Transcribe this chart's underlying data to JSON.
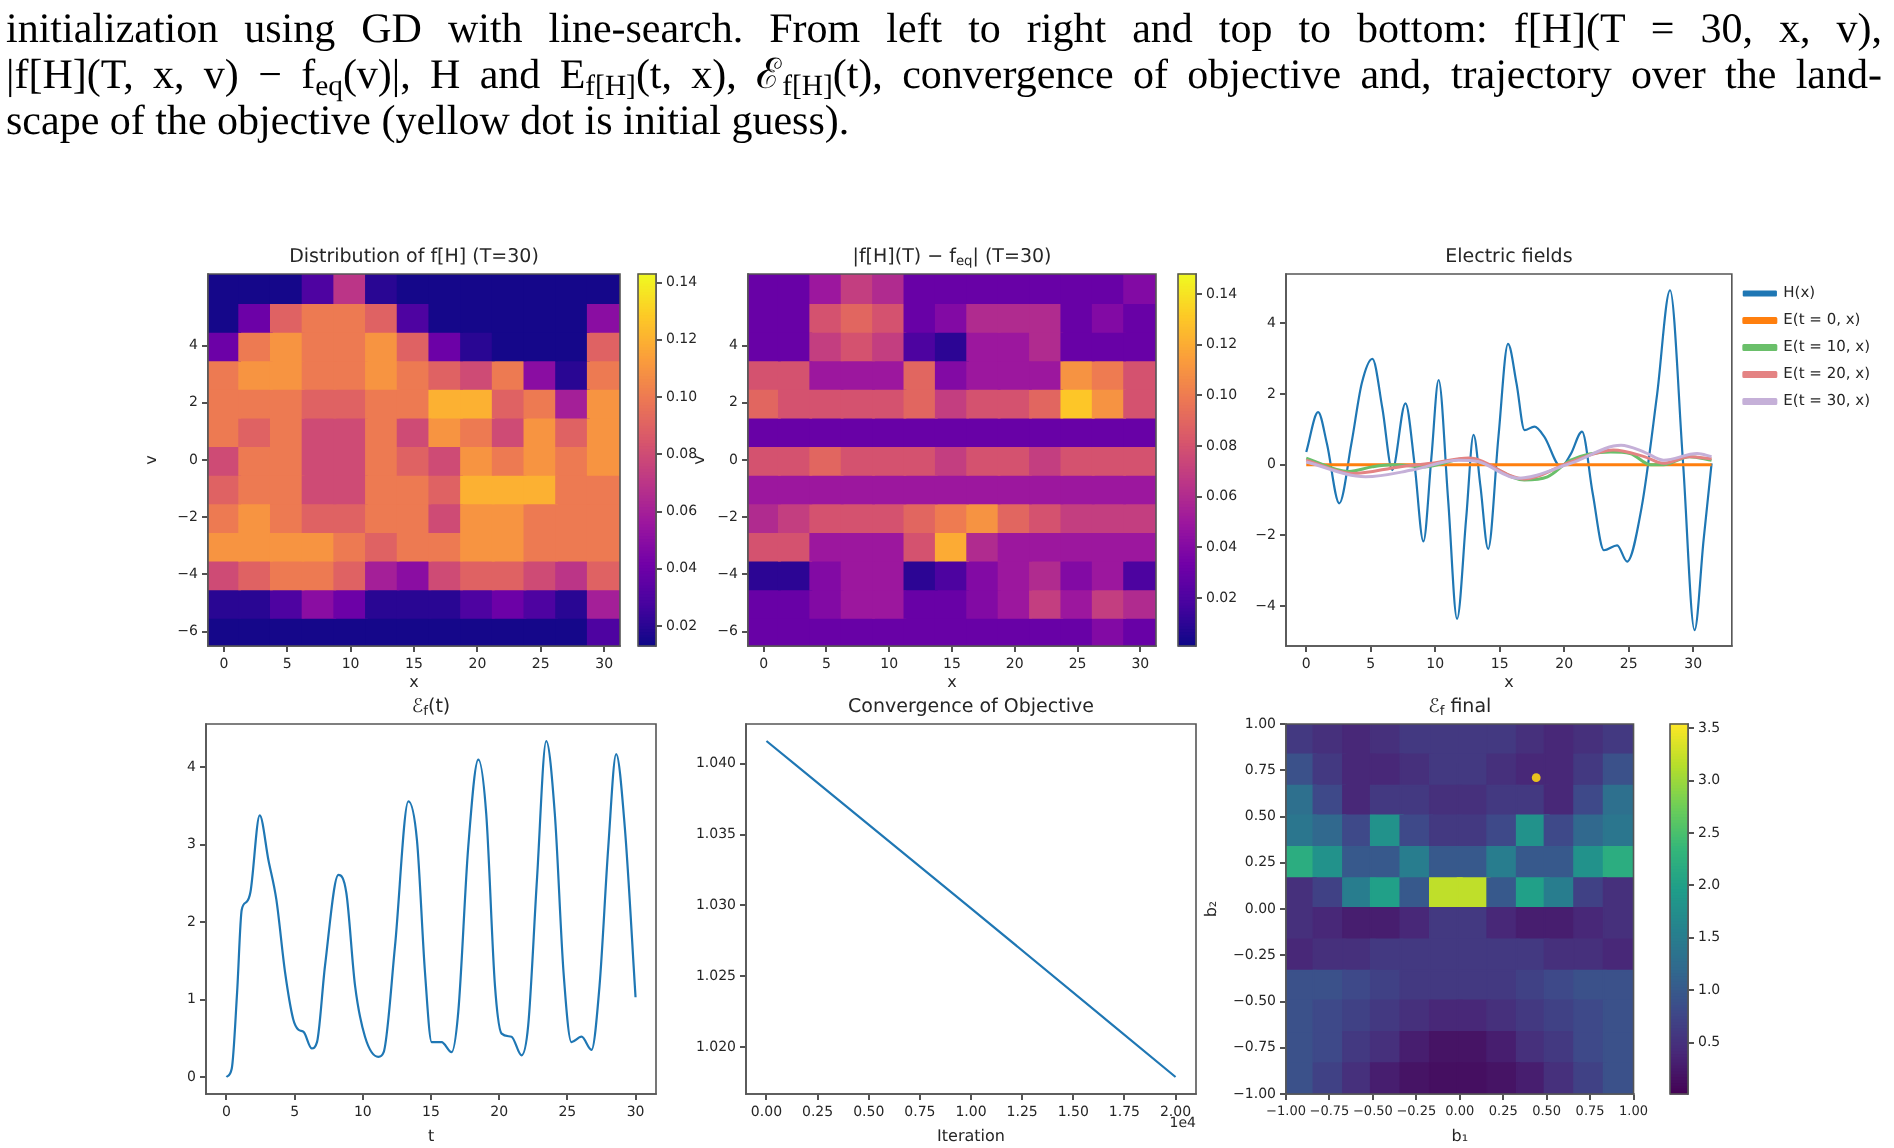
{
  "chart_data": [
    {
      "type": "other",
      "annotations": [
        "initialization using GD with line-search. From left to right and top to bottom: f[H](T = 30, x, v),",
        "|f[H](T, x, v) − f$_{eq}$(v)|, H and E$_{f[H]}$(t, x), ℰ$_{f[H]}$(t), convergence of objective and, trajectory over the land-",
        "scape of the objective (yellow dot is initial guess)."
      ]
    },
    {
      "type": "heatmap",
      "title": "Distribution of f[H] (T=30)",
      "xlabel": "x",
      "ylabel": "v",
      "categories": [
        "0",
        null,
        "5",
        null,
        "10",
        null,
        "15",
        null,
        "20",
        null,
        "25",
        null,
        "30"
      ],
      "y_categories": [
        null,
        null,
        "4",
        null,
        "2",
        null,
        "0",
        null,
        "−2",
        null,
        "−4",
        null,
        "−6"
      ],
      "clim": [
        0.013,
        0.143
      ],
      "cticks": [
        0.02,
        0.04,
        0.06,
        0.08,
        {
          "value": 0.1,
          "label": "0.10"
        },
        0.12,
        0.14
      ],
      "colors": [
        "#0d0887",
        "#46039f",
        "#7201a8",
        "#9c179e",
        "#bd3786",
        "#d8576b",
        "#ed7953",
        "#fb9f3a",
        "#fdca26",
        "#f0f921"
      ],
      "cells": [
        [
          0.015,
          0.015,
          0.015,
          0.03,
          0.07,
          0.02,
          0.015,
          0.015,
          0.015,
          0.015,
          0.015,
          0.015,
          0.015
        ],
        [
          0.015,
          0.04,
          0.09,
          0.1,
          0.1,
          0.09,
          0.03,
          0.015,
          0.015,
          0.015,
          0.015,
          0.015,
          0.05
        ],
        [
          0.04,
          0.1,
          0.11,
          0.1,
          0.1,
          0.11,
          0.09,
          0.04,
          0.02,
          0.015,
          0.015,
          0.015,
          0.09
        ],
        [
          0.1,
          0.11,
          0.11,
          0.1,
          0.1,
          0.11,
          0.1,
          0.09,
          0.08,
          0.1,
          0.05,
          0.02,
          0.1
        ],
        [
          0.1,
          0.1,
          0.1,
          0.09,
          0.09,
          0.1,
          0.1,
          0.12,
          0.12,
          0.09,
          0.1,
          0.06,
          0.11
        ],
        [
          0.1,
          0.09,
          0.1,
          0.08,
          0.08,
          0.1,
          0.08,
          0.11,
          0.1,
          0.08,
          0.11,
          0.09,
          0.11
        ],
        [
          0.08,
          0.1,
          0.1,
          0.08,
          0.08,
          0.1,
          0.09,
          0.08,
          0.11,
          0.1,
          0.11,
          0.1,
          0.11
        ],
        [
          0.09,
          0.1,
          0.1,
          0.08,
          0.08,
          0.1,
          0.1,
          0.09,
          0.12,
          0.12,
          0.12,
          0.1,
          0.1
        ],
        [
          0.1,
          0.11,
          0.1,
          0.09,
          0.09,
          0.1,
          0.1,
          0.08,
          0.11,
          0.11,
          0.1,
          0.1,
          0.1
        ],
        [
          0.11,
          0.11,
          0.11,
          0.11,
          0.1,
          0.09,
          0.1,
          0.1,
          0.11,
          0.11,
          0.1,
          0.1,
          0.1
        ],
        [
          0.08,
          0.09,
          0.1,
          0.1,
          0.09,
          0.06,
          0.05,
          0.08,
          0.09,
          0.09,
          0.08,
          0.07,
          0.09
        ],
        [
          0.02,
          0.02,
          0.03,
          0.05,
          0.04,
          0.02,
          0.02,
          0.02,
          0.03,
          0.04,
          0.03,
          0.02,
          0.06
        ],
        [
          0.015,
          0.015,
          0.015,
          0.015,
          0.015,
          0.015,
          0.015,
          0.015,
          0.015,
          0.015,
          0.015,
          0.015,
          0.03
        ]
      ]
    },
    {
      "type": "heatmap",
      "title": "|f[H](T) − f$_{eq}$| (T=30)",
      "xlabel": "x",
      "ylabel": "v",
      "categories": [
        "0",
        null,
        "5",
        null,
        "10",
        null,
        "15",
        null,
        "20",
        null,
        "25",
        null,
        "30"
      ],
      "y_categories": [
        null,
        null,
        "4",
        null,
        "2",
        null,
        "0",
        null,
        "−2",
        null,
        "−4",
        null,
        "−6"
      ],
      "clim": [
        0.001,
        0.148
      ],
      "cticks": [
        0.02,
        0.04,
        0.06,
        0.08,
        {
          "value": 0.1,
          "label": "0.10"
        },
        0.12,
        0.14
      ],
      "colors": [
        "#0d0887",
        "#46039f",
        "#7201a8",
        "#9c179e",
        "#bd3786",
        "#d8576b",
        "#ed7953",
        "#fb9f3a",
        "#fdca26",
        "#f0f921"
      ],
      "cells": [
        [
          0.03,
          0.03,
          0.05,
          0.07,
          0.06,
          0.03,
          0.03,
          0.03,
          0.03,
          0.03,
          0.03,
          0.03,
          0.04
        ],
        [
          0.03,
          0.03,
          0.08,
          0.09,
          0.08,
          0.03,
          0.04,
          0.06,
          0.06,
          0.06,
          0.03,
          0.04,
          0.03
        ],
        [
          0.03,
          0.03,
          0.07,
          0.08,
          0.07,
          0.02,
          0.01,
          0.05,
          0.05,
          0.06,
          0.03,
          0.03,
          0.03
        ],
        [
          0.08,
          0.08,
          0.05,
          0.05,
          0.05,
          0.09,
          0.04,
          0.05,
          0.05,
          0.05,
          0.11,
          0.1,
          0.08
        ],
        [
          0.09,
          0.08,
          0.08,
          0.08,
          0.08,
          0.09,
          0.07,
          0.08,
          0.08,
          0.09,
          0.13,
          0.11,
          0.08
        ],
        [
          0.03,
          0.03,
          0.03,
          0.03,
          0.03,
          0.03,
          0.03,
          0.03,
          0.03,
          0.03,
          0.03,
          0.03,
          0.03
        ],
        [
          0.08,
          0.08,
          0.09,
          0.08,
          0.08,
          0.08,
          0.07,
          0.08,
          0.08,
          0.07,
          0.08,
          0.08,
          0.08
        ],
        [
          0.05,
          0.05,
          0.05,
          0.05,
          0.05,
          0.05,
          0.05,
          0.05,
          0.05,
          0.05,
          0.05,
          0.05,
          0.05
        ],
        [
          0.06,
          0.07,
          0.08,
          0.08,
          0.08,
          0.09,
          0.1,
          0.11,
          0.09,
          0.08,
          0.07,
          0.07,
          0.07
        ],
        [
          0.08,
          0.08,
          0.05,
          0.05,
          0.05,
          0.08,
          0.12,
          0.06,
          0.05,
          0.05,
          0.05,
          0.05,
          0.05
        ],
        [
          0.01,
          0.01,
          0.04,
          0.05,
          0.05,
          0.01,
          0.02,
          0.04,
          0.05,
          0.06,
          0.04,
          0.05,
          0.02
        ],
        [
          0.03,
          0.03,
          0.04,
          0.05,
          0.05,
          0.03,
          0.03,
          0.04,
          0.05,
          0.07,
          0.05,
          0.07,
          0.06
        ],
        [
          0.03,
          0.03,
          0.03,
          0.03,
          0.03,
          0.03,
          0.03,
          0.03,
          0.03,
          0.03,
          0.03,
          0.04,
          0.03
        ]
      ]
    },
    {
      "type": "line",
      "title": "Electric fields",
      "xlabel": "x",
      "xlim": [
        -1.57,
        32.99
      ],
      "ylim": [
        -5.13,
        5.4
      ],
      "xticks": [
        0,
        5,
        10,
        15,
        20,
        25,
        30
      ],
      "yticks": [
        {
          "value": -4,
          "label": "−4"
        },
        {
          "value": -2,
          "label": "−2"
        },
        0,
        2,
        4
      ],
      "legend": "top right",
      "series": [
        {
          "name": "H(x)",
          "color": "#1f77b4",
          "x": [
            0,
            0.92,
            1.6,
            2.56,
            3.5,
            4.3,
            5.13,
            5.9,
            6.67,
            7.69,
            8.4,
            9.08,
            9.7,
            10.26,
            11.0,
            11.69,
            12.4,
            12.97,
            13.5,
            14.1,
            14.9,
            15.64,
            16.3,
            16.92,
            17.69,
            18.46,
            19.74,
            20.5,
            21.38,
            22.2,
            23.08,
            24.1,
            24.87,
            26.0,
            27.2,
            28.2,
            29.2,
            30.1,
            30.8,
            31.42
          ],
          "values": [
            0.36,
            1.49,
            0.6,
            -1.09,
            0.6,
            2.3,
            3.0,
            1.6,
            -0.15,
            1.74,
            0.0,
            -2.17,
            0.2,
            2.4,
            -1.0,
            -4.36,
            -1.5,
            0.85,
            -0.6,
            -2.38,
            0.8,
            3.42,
            2.3,
            0.98,
            1.08,
            0.79,
            -0.06,
            0.3,
            0.94,
            -0.8,
            -2.42,
            -2.28,
            -2.74,
            -1.2,
            2.0,
            4.94,
            0.1,
            -4.68,
            -2.13,
            0.04
          ]
        },
        {
          "name": "E(t = 0, x)",
          "color": "#ff7f0e",
          "x": [
            0,
            31.42
          ],
          "values": [
            0,
            0
          ]
        },
        {
          "name": "E(t = 10, x)",
          "color": "#6abf6a",
          "x": [
            0,
            3.3,
            5.1,
            6.7,
            9.2,
            12.3,
            13.8,
            16.9,
            18.7,
            20.5,
            23.6,
            25.1,
            26.7,
            27.7,
            29.7,
            31.42
          ],
          "values": [
            0.19,
            -0.19,
            -0.06,
            0,
            -0.06,
            0.17,
            0.04,
            -0.43,
            -0.34,
            0.13,
            0.36,
            0.32,
            0,
            0,
            0.23,
            0.13
          ]
        },
        {
          "name": "E(t = 20, x)",
          "color": "#e48383",
          "x": [
            0,
            3.6,
            7.2,
            9.7,
            12.6,
            16.9,
            20.5,
            23.8,
            26.2,
            27.7,
            29.7,
            31.42
          ],
          "values": [
            0.13,
            -0.25,
            -0.06,
            0.04,
            0.19,
            -0.4,
            0.08,
            0.42,
            0.23,
            0.04,
            0.23,
            0.17
          ]
        },
        {
          "name": "E(t = 30, x)",
          "color": "#c5b0d8",
          "x": [
            0,
            4.6,
            8.2,
            11.8,
            13.3,
            16.4,
            20.5,
            24.4,
            26.2,
            27.7,
            30.3,
            31.42
          ],
          "values": [
            0.08,
            -0.34,
            -0.15,
            0.13,
            0.09,
            -0.38,
            0.04,
            0.55,
            0.36,
            0.13,
            0.32,
            0.23
          ]
        }
      ]
    },
    {
      "type": "line",
      "title": "ℰ$_{f}$(t)",
      "xlabel": "t",
      "color": "#1f77b4",
      "xlim": [
        -1.5,
        31.5
      ],
      "ylim": [
        -0.22,
        4.56
      ],
      "xticks": [
        0,
        5,
        10,
        15,
        20,
        25,
        30
      ],
      "yticks": [
        0,
        1,
        2,
        3,
        4
      ],
      "x": [
        0,
        0.39,
        0.78,
        1.12,
        1.47,
        1.76,
        2.44,
        3.08,
        3.66,
        4.3,
        4.89,
        5.28,
        5.67,
        6.25,
        6.64,
        7.23,
        8.21,
        8.79,
        9.43,
        10.16,
        11.14,
        11.53,
        12.36,
        13.34,
        13.97,
        14.56,
        15.05,
        15.78,
        16.51,
        17.0,
        17.73,
        18.47,
        19.05,
        19.69,
        20.18,
        20.9,
        21.64,
        22.13,
        22.77,
        23.45,
        24.08,
        24.72,
        25.3,
        26.04,
        26.77,
        27.36,
        28.0,
        28.58,
        29.21,
        30.0
      ],
      "values": [
        0,
        0.11,
        1.09,
        2.16,
        2.26,
        2.39,
        3.38,
        2.8,
        2.29,
        1.35,
        0.75,
        0.61,
        0.58,
        0.37,
        0.45,
        1.44,
        2.61,
        2.38,
        1.18,
        0.52,
        0.26,
        0.32,
        1.69,
        3.56,
        3.06,
        1.35,
        0.45,
        0.45,
        0.32,
        0.84,
        2.97,
        4.1,
        3.4,
        1.18,
        0.56,
        0.52,
        0.28,
        0.67,
        2.55,
        4.34,
        3.4,
        1.35,
        0.45,
        0.52,
        0.35,
        1.18,
        2.97,
        4.17,
        3.23,
        1.03
      ]
    },
    {
      "type": "line",
      "title": "Convergence of Objective",
      "xlabel": "Iteration",
      "color": "#1f77b4",
      "x": [
        0,
        1,
        2
      ],
      "values": [
        1.0416,
        1.0298,
        1.0179
      ],
      "xlim": [
        -0.1,
        2.1
      ],
      "ylim": [
        1.0167,
        1.0428
      ],
      "xticks": [
        {
          "value": 0,
          "label": "0.00"
        },
        {
          "value": 0.25,
          "label": "0.25"
        },
        {
          "value": 0.5,
          "label": "0.50"
        },
        {
          "value": 0.75,
          "label": "0.75"
        },
        {
          "value": 1,
          "label": "1.00"
        },
        {
          "value": 1.25,
          "label": "1.25"
        },
        {
          "value": 1.5,
          "label": "1.50"
        },
        {
          "value": 1.75,
          "label": "1.75"
        },
        {
          "value": 2,
          "label": "2.00"
        }
      ],
      "yticks": [
        {
          "value": 1.02,
          "label": "1.020"
        },
        {
          "value": 1.025,
          "label": "1.025"
        },
        {
          "value": 1.03,
          "label": "1.030"
        },
        {
          "value": 1.035,
          "label": "1.035"
        },
        {
          "value": 1.04,
          "label": "1.040"
        }
      ],
      "annotations": [
        "1e4"
      ]
    },
    {
      "type": "scatter",
      "title": "ℰ$_{f}$ final",
      "xlabel": "b₁",
      "ylabel": "b₂",
      "xlim": [
        -1,
        1
      ],
      "ylim": [
        -1,
        1
      ],
      "xticks": [
        {
          "value": -1,
          "label": "−1.00"
        },
        {
          "value": -0.75,
          "label": "−0.75"
        },
        {
          "value": -0.5,
          "label": "−0.50"
        },
        {
          "value": -0.25,
          "label": "−0.25"
        },
        {
          "value": 0,
          "label": "0.00"
        },
        {
          "value": 0.25,
          "label": "0.25"
        },
        {
          "value": 0.5,
          "label": "0.50"
        },
        {
          "value": 0.75,
          "label": "0.75"
        },
        {
          "value": 1,
          "label": "1.00"
        }
      ],
      "yticks": [
        {
          "value": -1,
          "label": "−1.00"
        },
        {
          "value": -0.75,
          "label": "−0.75"
        },
        {
          "value": -0.5,
          "label": "−0.50"
        },
        {
          "value": -0.25,
          "label": "−0.25"
        },
        {
          "value": 0,
          "label": "0.00"
        },
        {
          "value": 0.25,
          "label": "0.25"
        },
        {
          "value": 0.5,
          "label": "0.50"
        },
        {
          "value": 0.75,
          "label": "0.75"
        },
        {
          "value": 1,
          "label": "1.00"
        }
      ],
      "clim": [
        0.01,
        3.54
      ],
      "cticks": [
        0.5,
        {
          "value": 1,
          "label": "1.0"
        },
        1.5,
        {
          "value": 2,
          "label": "2.0"
        },
        2.5,
        {
          "value": 3,
          "label": "3.0"
        },
        3.5
      ],
      "series": [
        {
          "marker": "square",
          "x": [
            -0.92,
            -0.75,
            -0.58,
            -0.42,
            -0.25,
            -0.08,
            0.08,
            0.25,
            0.42,
            0.58,
            0.75,
            0.92,
            -0.92,
            -0.75,
            -0.58,
            -0.42,
            -0.25,
            -0.08,
            0.08,
            0.25,
            0.42,
            0.58,
            0.75,
            0.92,
            -0.92,
            -0.75,
            -0.58,
            -0.42,
            -0.25,
            -0.08,
            0.08,
            0.25,
            0.42,
            0.58,
            0.75,
            0.92,
            -0.92,
            -0.75,
            -0.58,
            -0.42,
            -0.25,
            -0.08,
            0.08,
            0.25,
            0.42,
            0.58,
            0.75,
            0.92,
            -0.92,
            -0.75,
            -0.58,
            -0.42,
            -0.25,
            -0.08,
            0.08,
            0.25,
            0.42,
            0.58,
            0.75,
            0.92,
            -0.92,
            -0.75,
            -0.58,
            -0.42,
            -0.25,
            -0.08,
            0.08,
            0.25,
            0.42,
            0.58,
            0.75,
            0.92,
            -0.92,
            -0.75,
            -0.58,
            -0.42,
            -0.25,
            -0.08,
            0.08,
            0.25,
            0.42,
            0.58,
            0.75,
            0.92,
            -0.92,
            -0.75,
            -0.58,
            -0.42,
            -0.25,
            -0.08,
            0.08,
            0.25,
            0.42,
            0.58,
            0.75,
            0.92,
            -0.92,
            -0.75,
            -0.58,
            -0.42,
            -0.25,
            -0.08,
            0.08,
            0.25,
            0.42,
            0.58,
            0.75,
            0.92,
            -0.92,
            -0.75,
            -0.58,
            -0.42,
            -0.25,
            -0.08,
            0.08,
            0.25,
            0.42,
            0.58,
            0.75,
            0.92,
            -0.92,
            -0.75,
            -0.58,
            -0.42,
            -0.25,
            -0.08,
            0.08,
            0.25,
            0.42,
            0.58,
            0.75,
            0.92,
            -0.92,
            -0.75,
            -0.58,
            -0.42,
            -0.25,
            -0.08,
            0.08,
            0.25,
            0.42,
            0.58,
            0.75,
            0.92
          ],
          "values": [
            0.92,
            0.92,
            0.92,
            0.92,
            0.92,
            0.92,
            0.92,
            0.92,
            0.92,
            0.92,
            0.92,
            0.92,
            0.75,
            0.75,
            0.75,
            0.75,
            0.75,
            0.75,
            0.75,
            0.75,
            0.75,
            0.75,
            0.75,
            0.75,
            0.58,
            0.58,
            0.58,
            0.58,
            0.58,
            0.58,
            0.58,
            0.58,
            0.58,
            0.58,
            0.58,
            0.58,
            0.42,
            0.42,
            0.42,
            0.42,
            0.42,
            0.42,
            0.42,
            0.42,
            0.42,
            0.42,
            0.42,
            0.42,
            0.25,
            0.25,
            0.25,
            0.25,
            0.25,
            0.25,
            0.25,
            0.25,
            0.25,
            0.25,
            0.25,
            0.25,
            0.08,
            0.08,
            0.08,
            0.08,
            0.08,
            0.08,
            0.08,
            0.08,
            0.08,
            0.08,
            0.08,
            0.08,
            -0.08,
            -0.08,
            -0.08,
            -0.08,
            -0.08,
            -0.08,
            -0.08,
            -0.08,
            -0.08,
            -0.08,
            -0.08,
            -0.08,
            -0.25,
            -0.25,
            -0.25,
            -0.25,
            -0.25,
            -0.25,
            -0.25,
            -0.25,
            -0.25,
            -0.25,
            -0.25,
            -0.25,
            -0.42,
            -0.42,
            -0.42,
            -0.42,
            -0.42,
            -0.42,
            -0.42,
            -0.42,
            -0.42,
            -0.42,
            -0.42,
            -0.42,
            -0.58,
            -0.58,
            -0.58,
            -0.58,
            -0.58,
            -0.58,
            -0.58,
            -0.58,
            -0.58,
            -0.58,
            -0.58,
            -0.58,
            -0.75,
            -0.75,
            -0.75,
            -0.75,
            -0.75,
            -0.75,
            -0.75,
            -0.75,
            -0.75,
            -0.75,
            -0.75,
            -0.75,
            -0.92,
            -0.92,
            -0.92,
            -0.92,
            -0.92,
            -0.92,
            -0.92,
            -0.92,
            -0.92,
            -0.92,
            -0.92,
            -0.92
          ],
          "cvalues": [
            0.6,
            0.5,
            0.4,
            0.5,
            0.6,
            0.6,
            0.6,
            0.6,
            0.5,
            0.4,
            0.5,
            0.6,
            0.9,
            0.6,
            0.4,
            0.4,
            0.5,
            0.6,
            0.6,
            0.5,
            0.4,
            0.4,
            0.6,
            0.9,
            1.3,
            0.8,
            0.4,
            0.6,
            0.6,
            0.5,
            0.5,
            0.6,
            0.6,
            0.4,
            0.8,
            1.3,
            1.4,
            1.2,
            0.8,
            1.8,
            0.8,
            0.6,
            0.6,
            0.8,
            1.8,
            0.8,
            1.2,
            1.4,
            2.2,
            1.8,
            1.0,
            1.0,
            1.5,
            1.0,
            1.0,
            1.5,
            1.0,
            1.0,
            1.8,
            2.2,
            0.5,
            0.7,
            1.5,
            2.0,
            1.0,
            3.2,
            3.2,
            1.0,
            2.0,
            1.5,
            0.7,
            0.5,
            0.5,
            0.4,
            0.3,
            0.3,
            0.4,
            0.6,
            0.6,
            0.4,
            0.3,
            0.3,
            0.4,
            0.5,
            0.4,
            0.5,
            0.5,
            0.6,
            0.6,
            0.6,
            0.6,
            0.6,
            0.6,
            0.5,
            0.5,
            0.4,
            0.9,
            0.9,
            0.8,
            0.7,
            0.6,
            0.6,
            0.6,
            0.6,
            0.7,
            0.8,
            0.9,
            0.9,
            0.9,
            0.8,
            0.7,
            0.6,
            0.5,
            0.4,
            0.4,
            0.5,
            0.6,
            0.7,
            0.8,
            0.9,
            0.9,
            0.8,
            0.6,
            0.5,
            0.3,
            0.2,
            0.2,
            0.3,
            0.5,
            0.6,
            0.8,
            0.9,
            0.9,
            0.7,
            0.5,
            0.3,
            0.2,
            0.15,
            0.15,
            0.2,
            0.3,
            0.5,
            0.7,
            0.9
          ],
          "colors": [
            "#433981",
            "#46307c",
            "#482878",
            "#46307c",
            "#433981",
            "#433981",
            "#433981",
            "#433981",
            "#46307c",
            "#482878",
            "#46307c",
            "#433981",
            "#3b518a",
            "#433981",
            "#482878",
            "#482878",
            "#46307c",
            "#433981",
            "#433981",
            "#46307c",
            "#482878",
            "#482878",
            "#433981",
            "#3b518a",
            "#2e708e",
            "#3e4989",
            "#482878",
            "#433981",
            "#433981",
            "#46307c",
            "#46307c",
            "#433981",
            "#433981",
            "#482878",
            "#3e4989",
            "#2e708e",
            "#2b768e",
            "#31698e",
            "#3e4989",
            "#22928b",
            "#3e4989",
            "#433981",
            "#433981",
            "#3e4989",
            "#22928b",
            "#3e4989",
            "#31698e",
            "#2b768e",
            "#2cad80",
            "#22928b",
            "#37598c",
            "#37598c",
            "#287d8e",
            "#37598c",
            "#37598c",
            "#287d8e",
            "#37598c",
            "#37598c",
            "#22928b",
            "#2cad80",
            "#46307c",
            "#404185",
            "#287d8e",
            "#21a088",
            "#37598c",
            "#bfdf2a",
            "#bfdf2a",
            "#37598c",
            "#21a088",
            "#287d8e",
            "#404185",
            "#46307c",
            "#46307c",
            "#482878",
            "#471e6f",
            "#471e6f",
            "#482878",
            "#433981",
            "#433981",
            "#482878",
            "#471e6f",
            "#471e6f",
            "#482878",
            "#46307c",
            "#482878",
            "#46307c",
            "#46307c",
            "#433981",
            "#433981",
            "#433981",
            "#433981",
            "#433981",
            "#433981",
            "#46307c",
            "#46307c",
            "#482878",
            "#3b518a",
            "#3b518a",
            "#3e4989",
            "#404185",
            "#433981",
            "#433981",
            "#433981",
            "#433981",
            "#404185",
            "#3e4989",
            "#3b518a",
            "#3b518a",
            "#3b518a",
            "#3e4989",
            "#404185",
            "#433981",
            "#46307c",
            "#482878",
            "#482878",
            "#46307c",
            "#433981",
            "#404185",
            "#3e4989",
            "#3b518a",
            "#3b518a",
            "#3e4989",
            "#433981",
            "#46307c",
            "#471e6f",
            "#461465",
            "#461465",
            "#471e6f",
            "#46307c",
            "#433981",
            "#3e4989",
            "#3b518a",
            "#3b518a",
            "#404185",
            "#46307c",
            "#471e6f",
            "#461465",
            "#450f61",
            "#450f61",
            "#461465",
            "#471e6f",
            "#46307c",
            "#404185",
            "#3b518a"
          ]
        },
        {
          "color": "#e8c21e",
          "marker": "circle",
          "x": [
            0.44
          ],
          "values": [
            0.71
          ]
        }
      ]
    }
  ]
}
